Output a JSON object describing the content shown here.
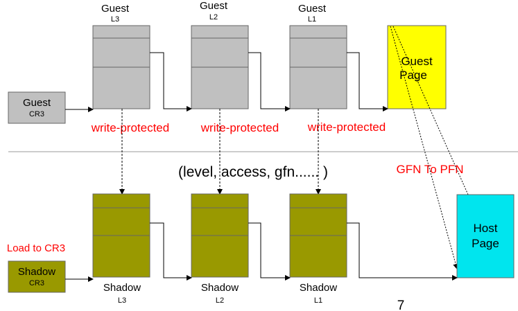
{
  "guest_row": {
    "tables": [
      {
        "title": "Guest",
        "level": "L3"
      },
      {
        "title": "Guest",
        "level": "L2"
      },
      {
        "title": "Guest",
        "level": "L1"
      }
    ],
    "page": {
      "line1": "Guest",
      "line2": "Page"
    },
    "cr3": {
      "line1": "Guest",
      "line2": "CR3"
    },
    "write_protected": [
      "write-protected",
      "write-protected",
      "write-protected"
    ]
  },
  "middle": {
    "level_note": "(level, access, gfn...... )",
    "gfn_to_pfn": "GFN To PFN"
  },
  "shadow_row": {
    "tables": [
      {
        "title": "Shadow",
        "level": "L3"
      },
      {
        "title": "Shadow",
        "level": "L2"
      },
      {
        "title": "Shadow",
        "level": "L1"
      }
    ],
    "page": {
      "line1": "Host",
      "line2": "Page"
    },
    "cr3": {
      "line1": "Shadow",
      "line2": "CR3"
    },
    "load_label": "Load to CR3"
  },
  "slide_number": "7",
  "colors": {
    "guest_table": "#c0c0c0",
    "guest_page": "#ffff00",
    "shadow_table": "#999900",
    "host_page": "#00e5ee",
    "warning_text": "#ff0000"
  }
}
